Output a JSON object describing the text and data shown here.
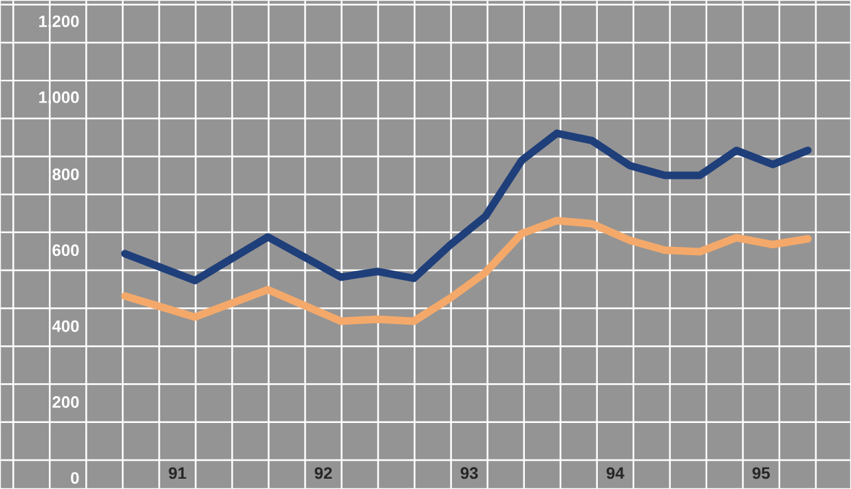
{
  "chart_data": {
    "type": "line",
    "x": [
      90.64,
      91.12,
      91.62,
      92.12,
      92.37,
      92.62,
      92.87,
      93.11,
      93.36,
      93.6,
      93.84,
      94.1,
      94.34,
      94.58,
      94.83,
      95.08,
      95.32
    ],
    "series": [
      {
        "color": "#1f3f7a",
        "values": [
          544,
          473,
          588,
          482,
          497,
          479,
          567,
          642,
          790,
          861,
          842,
          776,
          750,
          750,
          816,
          779,
          816
        ]
      },
      {
        "color": "#f4a96a",
        "values": [
          432,
          377,
          449,
          366,
          371,
          366,
          427,
          494,
          597,
          631,
          623,
          579,
          553,
          549,
          586,
          568,
          583
        ]
      }
    ],
    "xlim": [
      89.79,
      95.61
    ],
    "ylim": [
      -74,
      1210
    ],
    "xticks": [
      91,
      92,
      93,
      94,
      95
    ],
    "yticks": [
      0,
      200,
      400,
      600,
      800,
      {
        "value": 1000,
        "label": "1,000"
      },
      {
        "value": 1200,
        "label": "1,200"
      }
    ],
    "grid": true,
    "marker": "none",
    "line_style": "solid"
  }
}
